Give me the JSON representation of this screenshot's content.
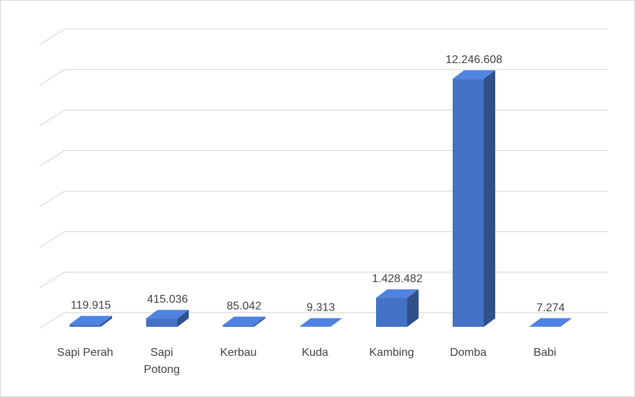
{
  "chart_data": {
    "type": "bar3d",
    "categories": [
      "Sapi Perah",
      "Sapi Potong",
      "Kerbau",
      "Kuda",
      "Kambing",
      "Domba",
      "Babi"
    ],
    "values": [
      119915,
      415036,
      85042,
      9313,
      1428482,
      12246608,
      7274
    ],
    "value_labels": [
      "119.915",
      "415.036",
      "85.042",
      "9.313",
      "1.428.482",
      "12.246.608",
      "7.274"
    ],
    "color": "#4472c4",
    "ylim": [
      0,
      14000000
    ],
    "yticks": [
      0,
      2000000,
      4000000,
      6000000,
      8000000,
      10000000,
      12000000,
      14000000
    ],
    "grid": true
  }
}
